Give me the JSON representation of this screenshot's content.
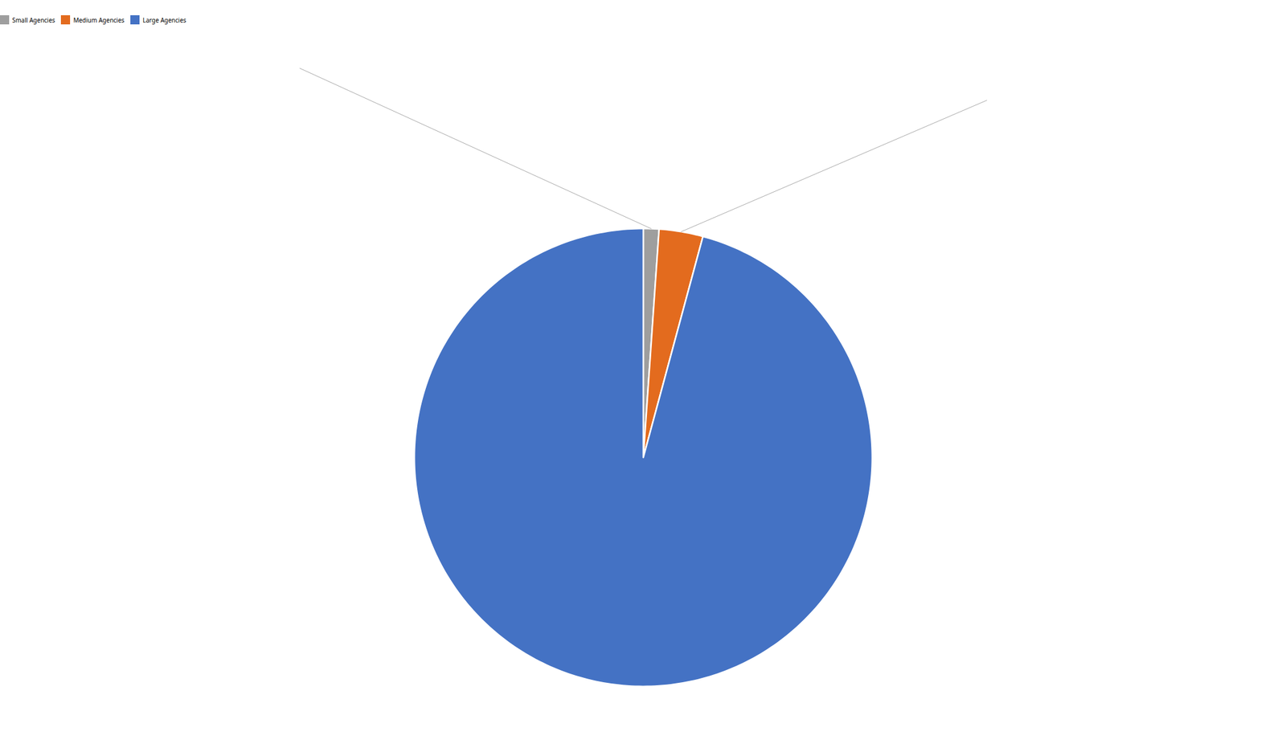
{
  "chart_data": {
    "type": "pie",
    "categories": [
      "Small Agencies",
      "Medium Agencies",
      "Large Agencies"
    ],
    "values": [
      1.1,
      3.1,
      95.9
    ],
    "colors": [
      "#9e9e9e",
      "#e36b1e",
      "#4472c4"
    ],
    "legend": "top"
  }
}
